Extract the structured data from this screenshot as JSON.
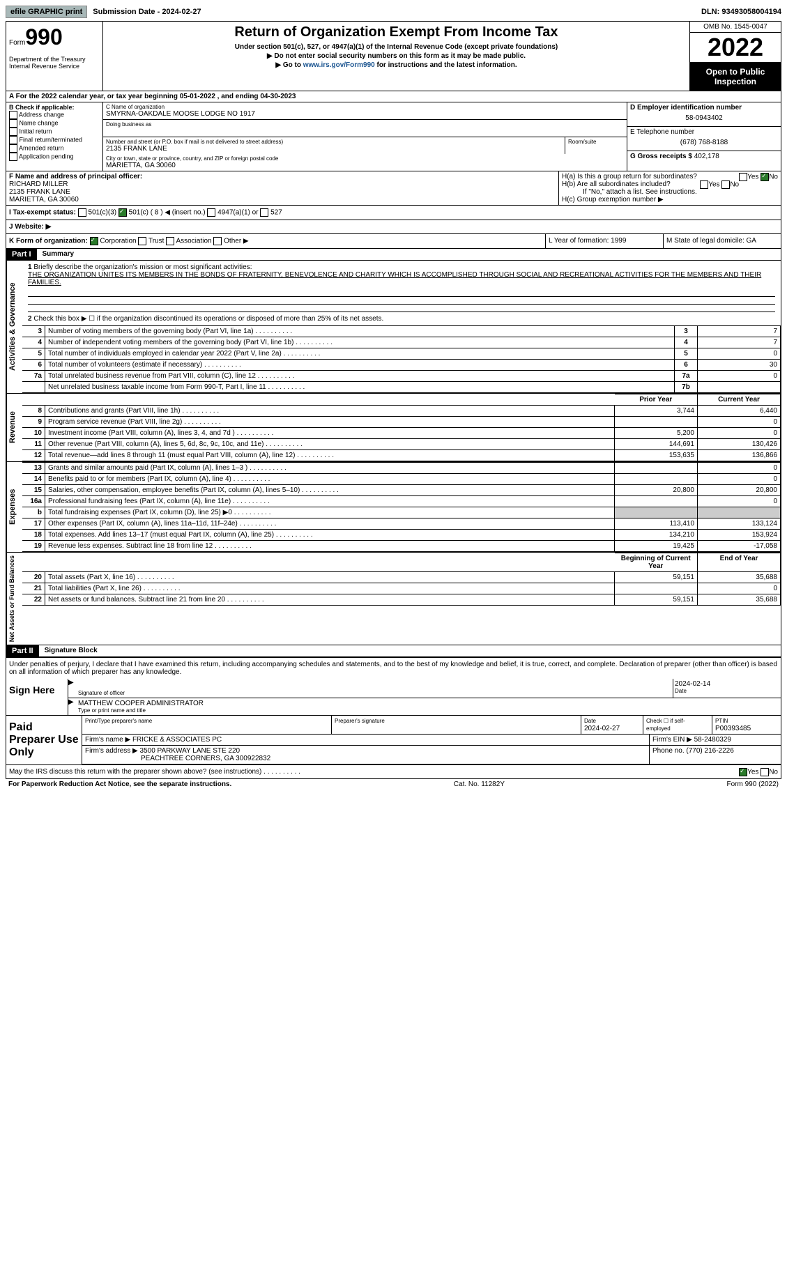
{
  "top": {
    "efile": "efile GRAPHIC print",
    "submission": "Submission Date - 2024-02-27",
    "dln": "DLN: 93493058004194"
  },
  "header": {
    "form_label": "Form",
    "form_num": "990",
    "dept": "Department of the Treasury Internal Revenue Service",
    "title": "Return of Organization Exempt From Income Tax",
    "subtitle": "Under section 501(c), 527, or 4947(a)(1) of the Internal Revenue Code (except private foundations)",
    "inst1": "▶ Do not enter social security numbers on this form as it may be made public.",
    "inst2_pre": "▶ Go to ",
    "inst2_link": "www.irs.gov/Form990",
    "inst2_post": " for instructions and the latest information.",
    "omb": "OMB No. 1545-0047",
    "year": "2022",
    "open": "Open to Public Inspection"
  },
  "a": "A For the 2022 calendar year, or tax year beginning 05-01-2022   , and ending 04-30-2023",
  "b": {
    "label": "B Check if applicable:",
    "items": [
      "Address change",
      "Name change",
      "Initial return",
      "Final return/terminated",
      "Amended return",
      "Application pending"
    ]
  },
  "c": {
    "name_label": "C Name of organization",
    "name": "SMYRNA-OAKDALE MOOSE LODGE NO 1917",
    "dba": "Doing business as",
    "addr_label": "Number and street (or P.O. box if mail is not delivered to street address)",
    "room": "Room/suite",
    "addr": "2135 FRANK LANE",
    "city_label": "City or town, state or province, country, and ZIP or foreign postal code",
    "city": "MARIETTA, GA  30060"
  },
  "d": {
    "label": "D Employer identification number",
    "val": "58-0943402"
  },
  "e": {
    "label": "E Telephone number",
    "val": "(678) 768-8188"
  },
  "g": {
    "label": "G Gross receipts $",
    "val": "402,178"
  },
  "f": {
    "label": "F  Name and address of principal officer:",
    "name": "RICHARD MILLER",
    "addr": "2135 FRANK LANE",
    "city": "MARIETTA, GA  30060"
  },
  "h": {
    "a": "H(a)  Is this a group return for subordinates?",
    "b": "H(b)  Are all subordinates included?",
    "note": "If \"No,\" attach a list. See instructions.",
    "c": "H(c)  Group exemption number ▶"
  },
  "i": "I   Tax-exempt status:",
  "i_opts": [
    "501(c)(3)",
    "501(c) ( 8 ) ◀ (insert no.)",
    "4947(a)(1) or",
    "527"
  ],
  "j": "J   Website: ▶",
  "k": "K Form of organization:",
  "k_opts": [
    "Corporation",
    "Trust",
    "Association",
    "Other ▶"
  ],
  "l": "L Year of formation: 1999",
  "m": "M State of legal domicile: GA",
  "part1": {
    "label": "Part I",
    "title": "Summary",
    "q1": "Briefly describe the organization's mission or most significant activities:",
    "mission": "THE ORGANIZATION UNITES ITS MEMBERS IN THE BONDS OF FRATERNITY, BENEVOLENCE AND CHARITY WHICH IS ACCOMPLISHED THROUGH SOCIAL AND RECREATIONAL ACTIVITIES FOR THE MEMBERS AND THEIR FAMILIES.",
    "q2": "Check this box ▶ ☐  if the organization discontinued its operations or disposed of more than 25% of its net assets.",
    "gov_label": "Activities & Governance",
    "rev_label": "Revenue",
    "exp_label": "Expenses",
    "net_label": "Net Assets or Fund Balances",
    "prior": "Prior Year",
    "current": "Current Year",
    "begin": "Beginning of Current Year",
    "end": "End of Year",
    "rows_gov": [
      {
        "n": "3",
        "d": "Number of voting members of the governing body (Part VI, line 1a)",
        "b": "3",
        "v": "7"
      },
      {
        "n": "4",
        "d": "Number of independent voting members of the governing body (Part VI, line 1b)",
        "b": "4",
        "v": "7"
      },
      {
        "n": "5",
        "d": "Total number of individuals employed in calendar year 2022 (Part V, line 2a)",
        "b": "5",
        "v": "0"
      },
      {
        "n": "6",
        "d": "Total number of volunteers (estimate if necessary)",
        "b": "6",
        "v": "30"
      },
      {
        "n": "7a",
        "d": "Total unrelated business revenue from Part VIII, column (C), line 12",
        "b": "7a",
        "v": "0"
      },
      {
        "n": "",
        "d": "Net unrelated business taxable income from Form 990-T, Part I, line 11",
        "b": "7b",
        "v": ""
      }
    ],
    "rows_rev": [
      {
        "n": "8",
        "d": "Contributions and grants (Part VIII, line 1h)",
        "p": "3,744",
        "c": "6,440"
      },
      {
        "n": "9",
        "d": "Program service revenue (Part VIII, line 2g)",
        "p": "",
        "c": "0"
      },
      {
        "n": "10",
        "d": "Investment income (Part VIII, column (A), lines 3, 4, and 7d )",
        "p": "5,200",
        "c": "0"
      },
      {
        "n": "11",
        "d": "Other revenue (Part VIII, column (A), lines 5, 6d, 8c, 9c, 10c, and 11e)",
        "p": "144,691",
        "c": "130,426"
      },
      {
        "n": "12",
        "d": "Total revenue—add lines 8 through 11 (must equal Part VIII, column (A), line 12)",
        "p": "153,635",
        "c": "136,866"
      }
    ],
    "rows_exp": [
      {
        "n": "13",
        "d": "Grants and similar amounts paid (Part IX, column (A), lines 1–3 )",
        "p": "",
        "c": "0"
      },
      {
        "n": "14",
        "d": "Benefits paid to or for members (Part IX, column (A), line 4)",
        "p": "",
        "c": "0"
      },
      {
        "n": "15",
        "d": "Salaries, other compensation, employee benefits (Part IX, column (A), lines 5–10)",
        "p": "20,800",
        "c": "20,800"
      },
      {
        "n": "16a",
        "d": "Professional fundraising fees (Part IX, column (A), line 11e)",
        "p": "",
        "c": "0"
      },
      {
        "n": "b",
        "d": "Total fundraising expenses (Part IX, column (D), line 25) ▶0",
        "p": "shade",
        "c": "shade"
      },
      {
        "n": "17",
        "d": "Other expenses (Part IX, column (A), lines 11a–11d, 11f–24e)",
        "p": "113,410",
        "c": "133,124"
      },
      {
        "n": "18",
        "d": "Total expenses. Add lines 13–17 (must equal Part IX, column (A), line 25)",
        "p": "134,210",
        "c": "153,924"
      },
      {
        "n": "19",
        "d": "Revenue less expenses. Subtract line 18 from line 12",
        "p": "19,425",
        "c": "-17,058"
      }
    ],
    "rows_net": [
      {
        "n": "20",
        "d": "Total assets (Part X, line 16)",
        "p": "59,151",
        "c": "35,688"
      },
      {
        "n": "21",
        "d": "Total liabilities (Part X, line 26)",
        "p": "",
        "c": "0"
      },
      {
        "n": "22",
        "d": "Net assets or fund balances. Subtract line 21 from line 20",
        "p": "59,151",
        "c": "35,688"
      }
    ]
  },
  "part2": {
    "label": "Part II",
    "title": "Signature Block",
    "decl": "Under penalties of perjury, I declare that I have examined this return, including accompanying schedules and statements, and to the best of my knowledge and belief, it is true, correct, and complete. Declaration of preparer (other than officer) is based on all information of which preparer has any knowledge.",
    "sign_here": "Sign Here",
    "sig_officer": "Signature of officer",
    "date": "Date",
    "sig_date": "2024-02-14",
    "name_title": "MATTHEW COOPER  ADMINISTRATOR",
    "type_name": "Type or print name and title",
    "paid": "Paid Preparer Use Only",
    "prep_name_lbl": "Print/Type preparer's name",
    "prep_sig_lbl": "Preparer's signature",
    "prep_date_lbl": "Date",
    "prep_date": "2024-02-27",
    "check_self": "Check ☐ if self-employed",
    "ptin_lbl": "PTIN",
    "ptin": "P00393485",
    "firm_name_lbl": "Firm's name     ▶",
    "firm_name": "FRICKE & ASSOCIATES PC",
    "firm_ein_lbl": "Firm's EIN ▶",
    "firm_ein": "58-2480329",
    "firm_addr_lbl": "Firm's address ▶",
    "firm_addr": "3500 PARKWAY LANE STE 220",
    "firm_city": "PEACHTREE CORNERS, GA  300922832",
    "phone_lbl": "Phone no.",
    "phone": "(770) 216-2226",
    "discuss": "May the IRS discuss this return with the preparer shown above? (see instructions)"
  },
  "footer": {
    "pra": "For Paperwork Reduction Act Notice, see the separate instructions.",
    "cat": "Cat. No. 11282Y",
    "form": "Form 990 (2022)"
  }
}
